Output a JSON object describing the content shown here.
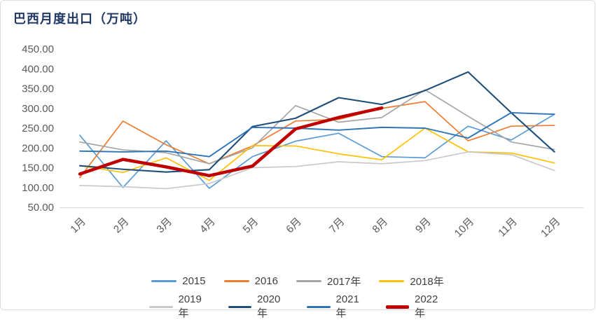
{
  "chart_data": {
    "type": "line",
    "title": "巴西月度出口（万吨）",
    "categories": [
      "1月",
      "2月",
      "3月",
      "4月",
      "5月",
      "6月",
      "7月",
      "8月",
      "9月",
      "10月",
      "11月",
      "12月"
    ],
    "y_ticks": [
      "450.00",
      "400.00",
      "350.00",
      "300.00",
      "250.00",
      "200.00",
      "150.00",
      "100.00",
      "50.00"
    ],
    "ylim": [
      50,
      450
    ],
    "grid": false,
    "legend_position": "bottom",
    "axis_label_color": "#595959",
    "axis_line_color": "#D9D9D9",
    "title_color": "#1F3864",
    "series": [
      {
        "name": "2015",
        "color": "#5B9BD5",
        "width": 1.7,
        "values": [
          232,
          100,
          218,
          98,
          178,
          217,
          237,
          178,
          175,
          255,
          220,
          285
        ]
      },
      {
        "name": "2016",
        "color": "#ED7D31",
        "width": 1.7,
        "values": [
          125,
          268,
          208,
          160,
          205,
          268,
          272,
          300,
          317,
          218,
          255,
          257
        ]
      },
      {
        "name": "2017年",
        "color": "#A5A5A5",
        "width": 1.7,
        "values": [
          215,
          195,
          188,
          160,
          200,
          307,
          265,
          277,
          347,
          280,
          215,
          196
        ]
      },
      {
        "name": "2018年",
        "color": "#FFC000",
        "width": 1.7,
        "values": [
          155,
          138,
          175,
          118,
          206,
          205,
          185,
          170,
          250,
          190,
          187,
          162
        ]
      },
      {
        "name": "2019年",
        "color": "#C9C9C9",
        "width": 1.7,
        "values": [
          105,
          102,
          97,
          110,
          150,
          153,
          165,
          160,
          168,
          190,
          183,
          143
        ]
      },
      {
        "name": "2020年",
        "color": "#1F4E79",
        "width": 2.1,
        "values": [
          155,
          146,
          139,
          145,
          254,
          275,
          327,
          310,
          345,
          392,
          289,
          190
        ]
      },
      {
        "name": "2021年",
        "color": "#2E75B6",
        "width": 1.9,
        "values": [
          192,
          190,
          192,
          178,
          252,
          250,
          245,
          252,
          250,
          225,
          289,
          285
        ]
      },
      {
        "name": "2022年",
        "color": "#C00000",
        "width": 4.5,
        "values": [
          134,
          171,
          152,
          130,
          154,
          248,
          277,
          301,
          null,
          null,
          null,
          null
        ]
      }
    ],
    "legend_rows": [
      [
        "2015",
        "2016",
        "2017年",
        "2018年"
      ],
      [
        "2019年",
        "2020年",
        "2021年",
        "2022年"
      ]
    ]
  }
}
